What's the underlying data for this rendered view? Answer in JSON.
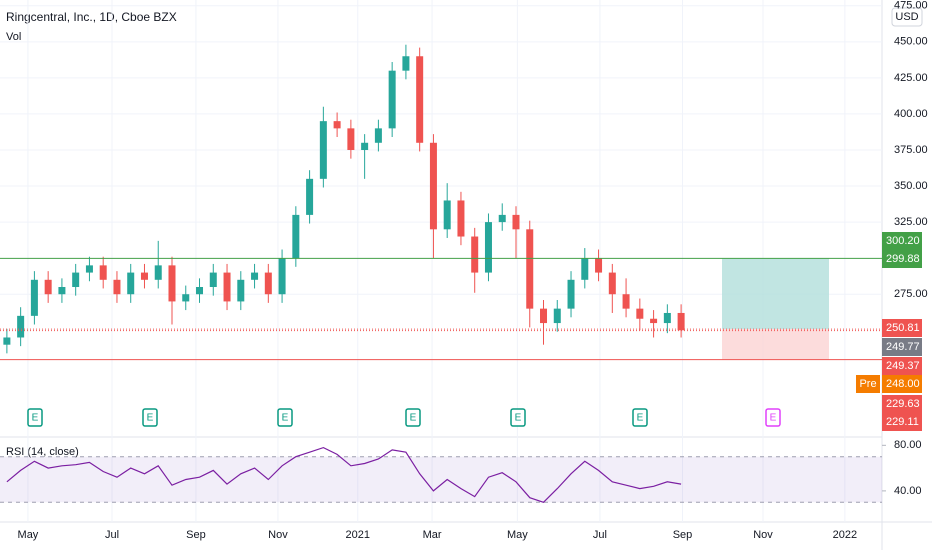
{
  "chart_data": {
    "type": "candlestick",
    "title": "Ringcentral, Inc., 1D, Cboe BZX",
    "volume_label": "Vol",
    "currency": "USD",
    "up_color": "#26a69a",
    "down_color": "#ef5350",
    "ylim": [
      176,
      479
    ],
    "yticks": [
      {
        "value": 475,
        "label": "475.00"
      },
      {
        "value": 450,
        "label": "450.00"
      },
      {
        "value": 425,
        "label": "425.00"
      },
      {
        "value": 400,
        "label": "400.00"
      },
      {
        "value": 375,
        "label": "375.00"
      },
      {
        "value": 350,
        "label": "350.00"
      },
      {
        "value": 325,
        "label": "325.00"
      },
      {
        "value": 275,
        "label": "275.00"
      }
    ],
    "xlim": [
      -0.5,
      63.6
    ],
    "xticks": [
      {
        "value": 1.53,
        "label": "May"
      },
      {
        "value": 7.64,
        "label": "Jul"
      },
      {
        "value": 13.74,
        "label": "Sep"
      },
      {
        "value": 19.7,
        "label": "Nov"
      },
      {
        "value": 25.5,
        "label": "2021"
      },
      {
        "value": 30.9,
        "label": "Mar"
      },
      {
        "value": 37.1,
        "label": "May"
      },
      {
        "value": 43.1,
        "label": "Jul"
      },
      {
        "value": 49.1,
        "label": "Sep"
      },
      {
        "value": 54.95,
        "label": "Nov"
      },
      {
        "value": 60.9,
        "label": "2022"
      }
    ],
    "candles": [
      {
        "open": 240,
        "high": 251,
        "low": 234,
        "close": 245
      },
      {
        "open": 245,
        "high": 266,
        "low": 239,
        "close": 260
      },
      {
        "open": 260,
        "high": 291,
        "low": 254,
        "close": 285
      },
      {
        "open": 285,
        "high": 291,
        "low": 269,
        "close": 275
      },
      {
        "open": 275,
        "high": 286,
        "low": 269,
        "close": 280
      },
      {
        "open": 280,
        "high": 296,
        "low": 274,
        "close": 290
      },
      {
        "open": 290,
        "high": 301,
        "low": 284,
        "close": 295
      },
      {
        "open": 295,
        "high": 301,
        "low": 279,
        "close": 285
      },
      {
        "open": 285,
        "high": 291,
        "low": 269,
        "close": 275
      },
      {
        "open": 275,
        "high": 296,
        "low": 269,
        "close": 290
      },
      {
        "open": 290,
        "high": 296,
        "low": 279,
        "close": 285
      },
      {
        "open": 285,
        "high": 312,
        "low": 279,
        "close": 295
      },
      {
        "open": 295,
        "high": 301,
        "low": 254,
        "close": 270
      },
      {
        "open": 270,
        "high": 281,
        "low": 264,
        "close": 275
      },
      {
        "open": 275,
        "high": 286,
        "low": 269,
        "close": 280
      },
      {
        "open": 280,
        "high": 296,
        "low": 274,
        "close": 290
      },
      {
        "open": 290,
        "high": 296,
        "low": 264,
        "close": 270
      },
      {
        "open": 270,
        "high": 291,
        "low": 264,
        "close": 285
      },
      {
        "open": 285,
        "high": 296,
        "low": 279,
        "close": 290
      },
      {
        "open": 290,
        "high": 296,
        "low": 269,
        "close": 275
      },
      {
        "open": 275,
        "high": 306,
        "low": 269,
        "close": 300
      },
      {
        "open": 300,
        "high": 336,
        "low": 294,
        "close": 330
      },
      {
        "open": 330,
        "high": 361,
        "low": 324,
        "close": 355
      },
      {
        "open": 355,
        "high": 405,
        "low": 349,
        "close": 395
      },
      {
        "open": 395,
        "high": 401,
        "low": 384,
        "close": 390
      },
      {
        "open": 390,
        "high": 396,
        "low": 369,
        "close": 375
      },
      {
        "open": 375,
        "high": 386,
        "low": 355,
        "close": 380
      },
      {
        "open": 380,
        "high": 396,
        "low": 374,
        "close": 390
      },
      {
        "open": 390,
        "high": 436,
        "low": 384,
        "close": 430
      },
      {
        "open": 430,
        "high": 448,
        "low": 424,
        "close": 440
      },
      {
        "open": 440,
        "high": 446,
        "low": 374,
        "close": 380
      },
      {
        "open": 380,
        "high": 386,
        "low": 300,
        "close": 320
      },
      {
        "open": 320,
        "high": 352,
        "low": 314,
        "close": 340
      },
      {
        "open": 340,
        "high": 346,
        "low": 309,
        "close": 315
      },
      {
        "open": 315,
        "high": 321,
        "low": 276,
        "close": 290
      },
      {
        "open": 290,
        "high": 331,
        "low": 284,
        "close": 325
      },
      {
        "open": 325,
        "high": 338,
        "low": 319,
        "close": 330
      },
      {
        "open": 330,
        "high": 336,
        "low": 300,
        "close": 320
      },
      {
        "open": 320,
        "high": 326,
        "low": 252,
        "close": 265
      },
      {
        "open": 265,
        "high": 271,
        "low": 240,
        "close": 255
      },
      {
        "open": 255,
        "high": 271,
        "low": 249,
        "close": 265
      },
      {
        "open": 265,
        "high": 291,
        "low": 259,
        "close": 285
      },
      {
        "open": 285,
        "high": 307,
        "low": 279,
        "close": 300
      },
      {
        "open": 300,
        "high": 306,
        "low": 284,
        "close": 290
      },
      {
        "open": 290,
        "high": 296,
        "low": 262,
        "close": 275
      },
      {
        "open": 275,
        "high": 286,
        "low": 259,
        "close": 265
      },
      {
        "open": 265,
        "high": 272,
        "low": 250,
        "close": 258
      },
      {
        "open": 258,
        "high": 264,
        "low": 245,
        "close": 255
      },
      {
        "open": 255,
        "high": 268,
        "low": 248,
        "close": 262
      },
      {
        "open": 262,
        "high": 268,
        "low": 245,
        "close": 250
      }
    ],
    "levels": [
      {
        "value": 299.88,
        "color": "#43a047",
        "style": "solid"
      },
      {
        "value": 250.81,
        "color": "#ef5350",
        "style": "dotted"
      },
      {
        "value": 249.77,
        "color": "#ef5350",
        "style": "dotted"
      },
      {
        "value": 229.63,
        "color": "#ef5350",
        "style": "solid"
      }
    ],
    "position": {
      "target": 299.88,
      "entry": 250.81,
      "stop": 229.63,
      "profit_color": "#b2dfdb",
      "loss_color": "#fbd3d3"
    },
    "price_labels": [
      {
        "label": "300.20",
        "color": "#43a047"
      },
      {
        "label": "299.88",
        "color": "#43a047"
      },
      {
        "label": "250.81",
        "color": "#ef5350"
      },
      {
        "label": "249.77",
        "color": "#787b86"
      },
      {
        "label": "249.37",
        "color": "#ef5350"
      },
      {
        "label": "248.00",
        "color": "#f57c00",
        "tag": "Pre"
      },
      {
        "label": "229.63",
        "color": "#ef5350"
      },
      {
        "label": "229.11",
        "color": "#ef5350"
      }
    ],
    "earnings_label": "E",
    "rsi": {
      "label": "RSI (14, close)",
      "color": "#7b1fa2",
      "ylim": [
        12.7,
        87.3
      ],
      "yticks": [
        {
          "value": 80,
          "label": "80.00"
        },
        {
          "value": 40,
          "label": "40.00"
        }
      ],
      "band": [
        30,
        70
      ],
      "values": [
        48,
        58,
        66,
        60,
        62,
        63,
        65,
        57,
        52,
        60,
        55,
        62,
        45,
        50,
        52,
        58,
        46,
        55,
        60,
        50,
        62,
        70,
        74,
        78,
        72,
        62,
        64,
        68,
        76,
        74,
        55,
        40,
        50,
        42,
        35,
        52,
        56,
        48,
        34,
        30,
        42,
        55,
        66,
        58,
        48,
        45,
        42,
        44,
        48,
        46
      ]
    }
  }
}
